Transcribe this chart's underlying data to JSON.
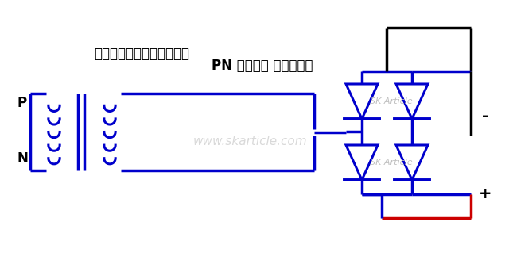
{
  "bg_color": "#ffffff",
  "blue": "#0000cc",
  "red": "#cc0000",
  "black": "#000000",
  "title1": "ट्रांसफार्मर",
  "title2": "PN संधि डायोड",
  "watermark": "www.skarticle.com",
  "sk_article": "SK Article",
  "label_p": "P",
  "label_n": "N",
  "label_minus": "-",
  "label_plus": "+"
}
